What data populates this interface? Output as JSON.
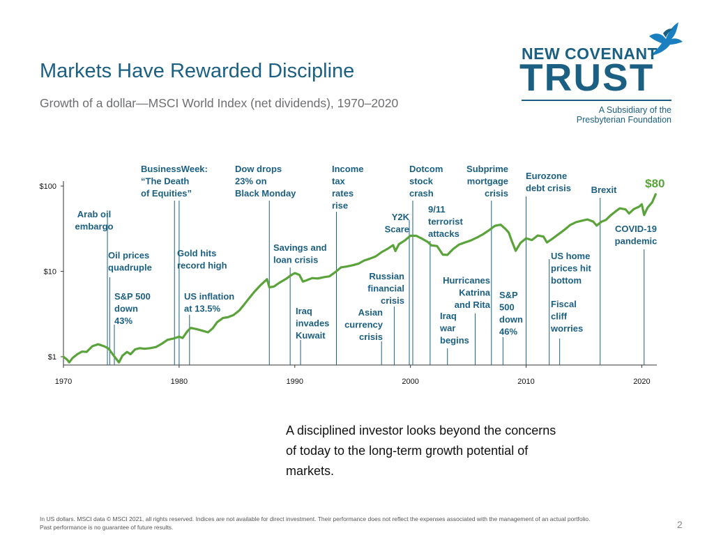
{
  "title": "Markets Have Rewarded Discipline",
  "subtitle": "Growth of a dollar—MSCI World Index (net dividends), 1970–2020",
  "logo": {
    "line1": "NEW COVENANT",
    "line2": "TRUST",
    "sub1": "A Subsidiary of the",
    "sub2": "Presbyterian Foundation",
    "icon": "dove-icon"
  },
  "quote": "A disciplined investor looks beyond the concerns of today to the long-term growth potential of markets.",
  "footer": {
    "line1": "In US dollars. MSCI data © MSCI 2021, all rights reserved. Indices are not available for direct investment. Their performance does not reflect the expenses associated with the management of an actual portfolio.",
    "line2": "Past performance is no guarantee of future results."
  },
  "page_number": "2",
  "colors": {
    "title": "#1b5f82",
    "annotation": "#1b5f82",
    "line": "#5aa33b",
    "end_label": "#5aa33b",
    "axis": "#333333"
  },
  "chart_data": {
    "type": "line",
    "y_scale": "log",
    "ylim": [
      0.8,
      110
    ],
    "xlim": [
      1970,
      2021.3
    ],
    "x_ticks": [
      1970,
      1980,
      1990,
      2000,
      2010,
      2020
    ],
    "y_ticks": [
      {
        "value": 1,
        "label": "$1"
      },
      {
        "value": 10,
        "label": "$10"
      },
      {
        "value": 100,
        "label": "$100"
      }
    ],
    "end_label": "$80",
    "series": [
      {
        "points": [
          [
            1970.0,
            1.0
          ],
          [
            1970.3,
            0.93
          ],
          [
            1970.5,
            0.86
          ],
          [
            1970.8,
            0.97
          ],
          [
            1971.2,
            1.07
          ],
          [
            1971.6,
            1.15
          ],
          [
            1972.0,
            1.14
          ],
          [
            1972.5,
            1.33
          ],
          [
            1973.0,
            1.4
          ],
          [
            1973.5,
            1.33
          ],
          [
            1973.9,
            1.25
          ],
          [
            1974.3,
            1.05
          ],
          [
            1974.6,
            0.93
          ],
          [
            1974.8,
            0.86
          ],
          [
            1975.1,
            1.03
          ],
          [
            1975.5,
            1.14
          ],
          [
            1975.8,
            1.07
          ],
          [
            1976.2,
            1.22
          ],
          [
            1976.6,
            1.26
          ],
          [
            1977.0,
            1.24
          ],
          [
            1977.5,
            1.26
          ],
          [
            1978.0,
            1.3
          ],
          [
            1978.5,
            1.42
          ],
          [
            1979.0,
            1.58
          ],
          [
            1979.5,
            1.63
          ],
          [
            1980.0,
            1.72
          ],
          [
            1980.3,
            1.66
          ],
          [
            1980.7,
            1.98
          ],
          [
            1981.0,
            2.18
          ],
          [
            1981.5,
            2.11
          ],
          [
            1982.0,
            2.02
          ],
          [
            1982.5,
            1.93
          ],
          [
            1982.9,
            2.15
          ],
          [
            1983.3,
            2.55
          ],
          [
            1983.8,
            2.85
          ],
          [
            1984.2,
            2.9
          ],
          [
            1984.7,
            3.08
          ],
          [
            1985.2,
            3.48
          ],
          [
            1985.6,
            4.05
          ],
          [
            1986.0,
            4.75
          ],
          [
            1986.5,
            5.75
          ],
          [
            1987.0,
            6.8
          ],
          [
            1987.6,
            8.1
          ],
          [
            1987.8,
            6.5
          ],
          [
            1988.2,
            6.65
          ],
          [
            1988.7,
            7.4
          ],
          [
            1989.2,
            8.1
          ],
          [
            1989.7,
            9.05
          ],
          [
            1990.0,
            9.55
          ],
          [
            1990.4,
            9.1
          ],
          [
            1990.7,
            7.6
          ],
          [
            1991.0,
            7.85
          ],
          [
            1991.5,
            8.35
          ],
          [
            1992.0,
            8.25
          ],
          [
            1992.5,
            8.55
          ],
          [
            1993.0,
            8.75
          ],
          [
            1993.5,
            9.8
          ],
          [
            1994.0,
            11.15
          ],
          [
            1994.5,
            11.4
          ],
          [
            1995.0,
            11.8
          ],
          [
            1995.5,
            12.3
          ],
          [
            1996.0,
            13.4
          ],
          [
            1996.5,
            14.1
          ],
          [
            1997.0,
            15.0
          ],
          [
            1997.5,
            16.8
          ],
          [
            1998.0,
            18.3
          ],
          [
            1998.5,
            20.3
          ],
          [
            1998.7,
            17.3
          ],
          [
            1999.0,
            20.8
          ],
          [
            1999.5,
            23.0
          ],
          [
            2000.0,
            26.2
          ],
          [
            2000.5,
            26.1
          ],
          [
            2001.0,
            24.2
          ],
          [
            2001.5,
            22.1
          ],
          [
            2001.8,
            20.2
          ],
          [
            2002.3,
            19.8
          ],
          [
            2002.8,
            15.7
          ],
          [
            2003.2,
            15.6
          ],
          [
            2003.7,
            18.3
          ],
          [
            2004.2,
            20.6
          ],
          [
            2004.7,
            21.8
          ],
          [
            2005.2,
            23.0
          ],
          [
            2005.8,
            25.1
          ],
          [
            2006.3,
            27.4
          ],
          [
            2006.8,
            30.4
          ],
          [
            2007.3,
            34.2
          ],
          [
            2007.8,
            35.2
          ],
          [
            2008.2,
            31.6
          ],
          [
            2008.5,
            28.4
          ],
          [
            2008.8,
            22.0
          ],
          [
            2009.1,
            17.4
          ],
          [
            2009.5,
            21.5
          ],
          [
            2010.0,
            24.4
          ],
          [
            2010.5,
            23.3
          ],
          [
            2011.0,
            26.3
          ],
          [
            2011.5,
            25.6
          ],
          [
            2011.8,
            21.8
          ],
          [
            2012.3,
            24.3
          ],
          [
            2012.8,
            27.3
          ],
          [
            2013.3,
            30.6
          ],
          [
            2013.8,
            34.9
          ],
          [
            2014.3,
            37.7
          ],
          [
            2014.8,
            39.2
          ],
          [
            2015.3,
            40.6
          ],
          [
            2015.8,
            38.3
          ],
          [
            2016.1,
            34.4
          ],
          [
            2016.5,
            38.1
          ],
          [
            2016.9,
            40.1
          ],
          [
            2017.3,
            45.2
          ],
          [
            2017.8,
            51.2
          ],
          [
            2018.1,
            54.8
          ],
          [
            2018.6,
            53.3
          ],
          [
            2018.9,
            47.7
          ],
          [
            2019.3,
            53.6
          ],
          [
            2019.8,
            57.6
          ],
          [
            2020.0,
            61.2
          ],
          [
            2020.2,
            45.8
          ],
          [
            2020.5,
            55.7
          ],
          [
            2020.9,
            64.6
          ],
          [
            2021.2,
            80.0
          ]
        ]
      }
    ],
    "annotations": [
      {
        "lines": [
          "Arab oil",
          "embargo"
        ],
        "year": 1973.8,
        "align": "center"
      },
      {
        "lines": [
          "Oil prices",
          "quadruple"
        ],
        "year": 1974.0,
        "align": "left"
      },
      {
        "lines": [
          "S&P 500",
          "down",
          "43%"
        ],
        "year": 1974.4,
        "align": "left"
      },
      {
        "lines": [
          "BusinessWeek:",
          "“The Death",
          "of Equities”"
        ],
        "year": 1979.6,
        "align": "left"
      },
      {
        "lines": [
          "Gold hits",
          "record high"
        ],
        "year": 1980.0,
        "align": "left"
      },
      {
        "lines": [
          "US inflation",
          "at 13.5%"
        ],
        "year": 1980.9,
        "align": "left"
      },
      {
        "lines": [
          "Dow drops",
          "23% on",
          "Black Monday"
        ],
        "year": 1987.8,
        "align": "left"
      },
      {
        "lines": [
          "Savings and",
          "loan crisis"
        ],
        "year": 1989.6,
        "align": "left"
      },
      {
        "lines": [
          "Iraq",
          "invades",
          "Kuwait"
        ],
        "year": 1990.5,
        "align": "left"
      },
      {
        "lines": [
          "Income",
          "tax",
          "rates",
          "rise"
        ],
        "year": 1993.6,
        "align": "left"
      },
      {
        "lines": [
          "Asian",
          "currency",
          "crisis"
        ],
        "year": 1997.5,
        "align": "right"
      },
      {
        "lines": [
          "Russian",
          "financial",
          "crisis"
        ],
        "year": 1998.6,
        "align": "right"
      },
      {
        "lines": [
          "Y2K",
          "Scare"
        ],
        "year": 1999.9,
        "align": "right"
      },
      {
        "lines": [
          "Dotcom",
          "stock",
          "crash"
        ],
        "year": 2000.2,
        "align": "left"
      },
      {
        "lines": [
          "9/11",
          "terrorist",
          "attacks"
        ],
        "year": 2001.7,
        "align": "left"
      },
      {
        "lines": [
          "Iraq",
          "war",
          "begins"
        ],
        "year": 2003.2,
        "align": "left"
      },
      {
        "lines": [
          "Hurricanes",
          "Katrina",
          "and Rita"
        ],
        "year": 2005.6,
        "align": "right"
      },
      {
        "lines": [
          "Subprime",
          "mortgage",
          "crisis"
        ],
        "year": 2007.0,
        "align": "right"
      },
      {
        "lines": [
          "S&P",
          "500",
          "down",
          "46%"
        ],
        "year": 2008.0,
        "align": "left"
      },
      {
        "lines": [
          "Eurozone",
          "debt crisis"
        ],
        "year": 2010.0,
        "align": "left"
      },
      {
        "lines": [
          "US home",
          "prices hit",
          "bottom"
        ],
        "year": 2012.0,
        "align": "left"
      },
      {
        "lines": [
          "Fiscal",
          "cliff",
          "worries"
        ],
        "year": 2012.9,
        "align": "left"
      },
      {
        "lines": [
          "Brexit"
        ],
        "year": 2016.4,
        "align": "center"
      },
      {
        "lines": [
          "COVID-19",
          "pandemic"
        ],
        "year": 2020.2,
        "align": "center"
      }
    ]
  }
}
